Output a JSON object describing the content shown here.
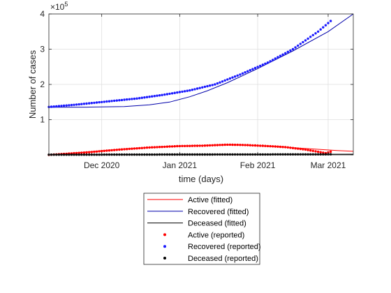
{
  "chart_data": {
    "type": "scatter",
    "title": "",
    "xlabel": "time (days)",
    "ylabel": "Number of cases",
    "y_exponent_label": "×10",
    "y_exponent_power": "5",
    "x_axis_type": "date",
    "xlim": [
      "2020-11-10",
      "2021-03-11"
    ],
    "ylim": [
      0,
      400000
    ],
    "x_ticks": [
      {
        "date": "2020-12-01",
        "label": "Dec 2020"
      },
      {
        "date": "2021-01-01",
        "label": "Jan 2021"
      },
      {
        "date": "2021-02-01",
        "label": "Feb 2021"
      },
      {
        "date": "2021-03-01",
        "label": "Mar 2021"
      }
    ],
    "y_ticks": [
      {
        "value": 0,
        "label": ""
      },
      {
        "value": 100000,
        "label": "1"
      },
      {
        "value": 200000,
        "label": "2"
      },
      {
        "value": 300000,
        "label": "3"
      },
      {
        "value": 400000,
        "label": "4"
      }
    ],
    "grid": true,
    "legend_position": "bottom-center",
    "series": [
      {
        "name": "Active (fitted)",
        "kind": "line",
        "color": "#ff0000",
        "points": [
          [
            "2020-11-10",
            0
          ],
          [
            "2020-11-20",
            5000
          ],
          [
            "2020-12-01",
            12000
          ],
          [
            "2020-12-15",
            19000
          ],
          [
            "2021-01-01",
            25000
          ],
          [
            "2021-01-15",
            28000
          ],
          [
            "2021-01-25",
            28000
          ],
          [
            "2021-02-05",
            25000
          ],
          [
            "2021-02-20",
            18000
          ],
          [
            "2021-03-05",
            12000
          ],
          [
            "2021-03-11",
            10000
          ]
        ]
      },
      {
        "name": "Recovered (fitted)",
        "kind": "line",
        "color": "#0000aa",
        "points": [
          [
            "2020-11-10",
            135000
          ],
          [
            "2020-11-25",
            135500
          ],
          [
            "2020-12-10",
            137000
          ],
          [
            "2020-12-20",
            142000
          ],
          [
            "2020-12-28",
            150000
          ],
          [
            "2021-01-05",
            165000
          ],
          [
            "2021-01-12",
            182000
          ],
          [
            "2021-01-20",
            205000
          ],
          [
            "2021-02-01",
            245000
          ],
          [
            "2021-02-15",
            295000
          ],
          [
            "2021-03-01",
            350000
          ],
          [
            "2021-03-11",
            400000
          ]
        ]
      },
      {
        "name": "Deceased (fitted)",
        "kind": "line",
        "color": "#000000",
        "points": [
          [
            "2020-11-10",
            500
          ],
          [
            "2021-03-11",
            2000
          ]
        ]
      },
      {
        "name": "Active (reported)",
        "kind": "points",
        "color": "#ff0000",
        "points": [
          [
            "2020-11-10",
            0
          ],
          [
            "2020-11-25",
            7000
          ],
          [
            "2020-12-10",
            16000
          ],
          [
            "2020-12-20",
            21000
          ],
          [
            "2021-01-01",
            25000
          ],
          [
            "2021-01-10",
            26000
          ],
          [
            "2021-01-20",
            29000
          ],
          [
            "2021-01-27",
            28000
          ],
          [
            "2021-02-05",
            25000
          ],
          [
            "2021-02-12",
            22000
          ],
          [
            "2021-02-20",
            15000
          ],
          [
            "2021-02-28",
            5000
          ],
          [
            "2021-03-02",
            9000
          ]
        ]
      },
      {
        "name": "Recovered (reported)",
        "kind": "points",
        "color": "#1a1aff",
        "points": [
          [
            "2020-11-10",
            136000
          ],
          [
            "2020-11-20",
            142000
          ],
          [
            "2020-12-01",
            150000
          ],
          [
            "2020-12-15",
            160000
          ],
          [
            "2020-12-25",
            170000
          ],
          [
            "2021-01-05",
            183000
          ],
          [
            "2021-01-15",
            200000
          ],
          [
            "2021-01-25",
            228000
          ],
          [
            "2021-02-05",
            262000
          ],
          [
            "2021-02-15",
            300000
          ],
          [
            "2021-02-25",
            350000
          ],
          [
            "2021-03-02",
            380000
          ]
        ]
      },
      {
        "name": "Deceased  (reported)",
        "kind": "points",
        "color": "#000000",
        "points": [
          [
            "2020-11-10",
            500
          ],
          [
            "2021-03-02",
            1500
          ]
        ]
      }
    ]
  }
}
